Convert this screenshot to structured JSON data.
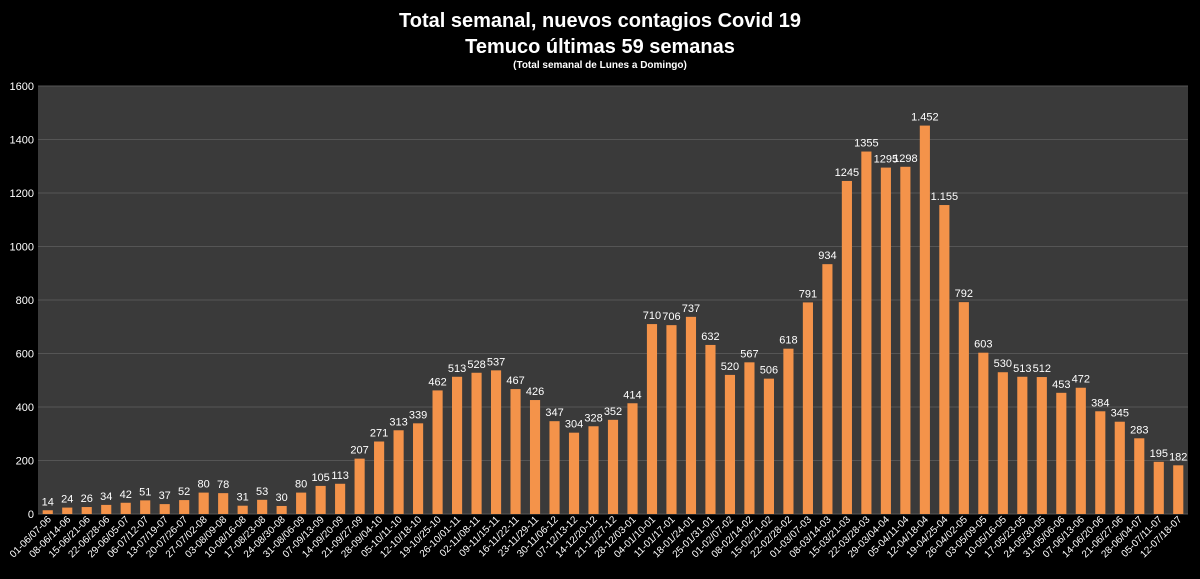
{
  "chart_data": {
    "type": "bar",
    "title": "Total semanal, nuevos contagios Covid 19",
    "title_line2": "Temuco últimas 59 semanas",
    "subtitle": "(Total semanal de Lunes a Domingo)",
    "xlabel": "",
    "ylabel": "",
    "ylim": [
      0,
      1600
    ],
    "yticks": [
      0,
      200,
      400,
      600,
      800,
      1000,
      1200,
      1400,
      1600
    ],
    "grid": true,
    "legend": "none",
    "colors": {
      "background": "#000000",
      "plot_background": "#3a3a3a",
      "gridline": "#555555",
      "bar": "#f4934a",
      "text": "#ffffff"
    },
    "categories": [
      "01-06/07-06",
      "08-06/14-06",
      "15-06/21-06",
      "22-06/28-06",
      "29-06/05-07",
      "06-07/12-07",
      "13-07/19-07",
      "20-07/26-07",
      "27-07/02-08",
      "03-08/09-08",
      "10-08/16-08",
      "17-08/23-08",
      "24-08/30-08",
      "31-08/06-09",
      "07-09/13-09",
      "14-09/20-09",
      "21-09/27-09",
      "28-09/04-10",
      "05-10/11-10",
      "12-10/18-10",
      "19-10/25-10",
      "26-10/01-11",
      "02-11/08-11",
      "09-11/15-11",
      "16-11/22-11",
      "23-11/29-11",
      "30-11/06-12",
      "07-12/13-12",
      "14-12/20-12",
      "21-12/27-12",
      "28-12/03-01",
      "04-01/10-01",
      "11-01/17-01",
      "18-01/24-01",
      "25-01/31-01",
      "01-02/07-02",
      "08-02/14-02",
      "15-02/21-02",
      "22-02/28-02",
      "01-03/07-03",
      "08-03/14-03",
      "15-03/21-03",
      "22-03/28-03",
      "29-03/04-04",
      "05-04/11-04",
      "12-04/18-04",
      "19-04/25-04",
      "26-04/02-05",
      "03-05/09-05",
      "10-05/16-05",
      "17-05/23-05",
      "24-05/30-05",
      "31-05/06-06",
      "07-06/13-06",
      "14-06/20-06",
      "21-06/27-06",
      "28-06/04-07",
      "05-07/11-07",
      "12-07/18-07"
    ],
    "values": [
      14,
      24,
      26,
      34,
      42,
      51,
      37,
      52,
      80,
      78,
      31,
      53,
      30,
      80,
      105,
      113,
      207,
      271,
      313,
      339,
      462,
      513,
      528,
      537,
      467,
      426,
      347,
      304,
      328,
      352,
      414,
      710,
      706,
      737,
      632,
      520,
      567,
      506,
      618,
      791,
      934,
      1245,
      1355,
      1295,
      1298,
      1452,
      1155,
      792,
      603,
      530,
      513,
      512,
      453,
      472,
      384,
      345,
      283,
      195,
      182
    ],
    "data_labels": [
      "14",
      "24",
      "26",
      "34",
      "42",
      "51",
      "37",
      "52",
      "80",
      "78",
      "31",
      "53",
      "30",
      "80",
      "105",
      "113",
      "207",
      "271",
      "313",
      "339",
      "462",
      "513",
      "528",
      "537",
      "467",
      "426",
      "347",
      "304",
      "328",
      "352",
      "414",
      "710",
      "706",
      "737",
      "632",
      "520",
      "567",
      "506",
      "618",
      "791",
      "934",
      "1245",
      "1355",
      "1295",
      "1298",
      "1.452",
      "1.155",
      "792",
      "603",
      "530",
      "513",
      "512",
      "453",
      "472",
      "384",
      "345",
      "283",
      "195",
      "182"
    ]
  }
}
